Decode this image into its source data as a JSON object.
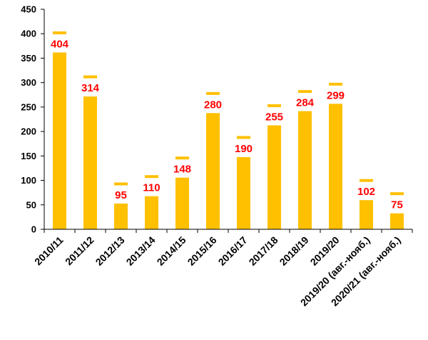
{
  "chart_data": {
    "type": "bar",
    "categories": [
      "2010/11",
      "2011/12",
      "2012/13",
      "2013/14",
      "2014/15",
      "2015/16",
      "2016/17",
      "2017/18",
      "2018/19",
      "2019/20",
      "2019/20 (авг.-нояб.)",
      "2020/21 (авг.-нояб.)"
    ],
    "values": [
      404,
      314,
      95,
      110,
      148,
      280,
      190,
      255,
      284,
      299,
      102,
      75
    ],
    "title": "",
    "xlabel": "",
    "ylabel": "",
    "ylim": [
      0,
      450
    ],
    "yticks": [
      0,
      50,
      100,
      150,
      200,
      250,
      300,
      350,
      400,
      450
    ],
    "grid": false,
    "legend": "none",
    "bar_color": "#ffc000",
    "label_color": "#ff0000"
  }
}
